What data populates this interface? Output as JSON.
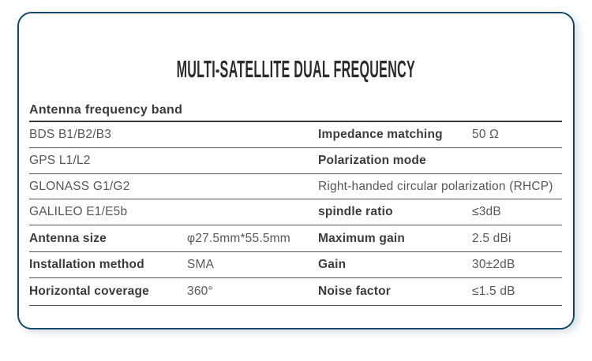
{
  "title": "MULTI-SATELLITE DUAL FREQUENCY",
  "table": {
    "header": "Antenna frequency band",
    "rows": [
      {
        "left_label": "BDS B1/B2/B3",
        "left_value": "",
        "right_label": "Impedance matching",
        "right_value": "50 Ω"
      },
      {
        "left_label": "GPS L1/L2",
        "left_value": "",
        "right_label": "Polarization mode",
        "right_value": ""
      },
      {
        "left_label": "GLONASS G1/G2",
        "left_value": "",
        "right_span": "Right-handed circular polarization (RHCP)"
      },
      {
        "left_label": "GALILEO E1/E5b",
        "left_value": "",
        "right_label": "spindle ratio",
        "right_value": "≤3dB"
      },
      {
        "left_label": "Antenna size",
        "left_value": "φ27.5mm*55.5mm",
        "right_label": "Maximum gain",
        "right_value": "2.5 dBi"
      },
      {
        "left_label": "Installation method",
        "left_value": "SMA",
        "right_label": "Gain",
        "right_value": "30±2dB"
      },
      {
        "left_label": "Horizontal coverage",
        "left_value": "360°",
        "right_label": "Noise factor",
        "right_value": "≤1.5 dB"
      }
    ]
  },
  "colors": {
    "card_border": "#14496d",
    "header_rule": "#3a3a3a",
    "row_rule": "#535353",
    "text_bold": "#3b3b3f",
    "text_regular": "#57575b",
    "title": "#2c2c30",
    "background": "#ffffff"
  }
}
